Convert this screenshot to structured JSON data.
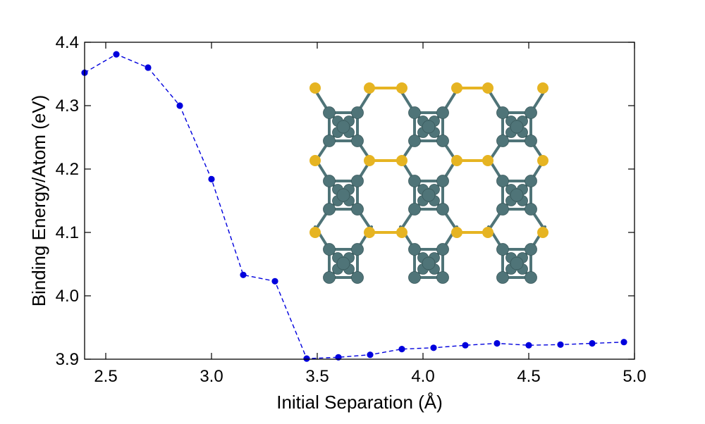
{
  "chart_data": {
    "type": "line",
    "title": "",
    "xlabel": "Initial Separation (Å)",
    "ylabel": "Binding Energy/Atom (eV)",
    "xlim": [
      2.4,
      5.0
    ],
    "ylim": [
      3.9,
      4.4
    ],
    "grid": false,
    "legend": "none",
    "line_style": "dashed",
    "marker": "circle",
    "colors": {
      "series": "#0000dd",
      "inset_sulfur": "#e6b422",
      "inset_metal": "#4f7478"
    },
    "x_ticks": [
      2.5,
      3.0,
      3.5,
      4.0,
      4.5,
      5.0
    ],
    "x_tick_labels": [
      "2.5",
      "3.0",
      "3.5",
      "4.0",
      "4.5",
      "5.0"
    ],
    "y_ticks": [
      3.9,
      4.0,
      4.1,
      4.2,
      4.3,
      4.4
    ],
    "y_tick_labels": [
      "3.9",
      "4.0",
      "4.1",
      "4.2",
      "4.3",
      "4.4"
    ],
    "x": [
      2.4,
      2.55,
      2.7,
      2.85,
      3.0,
      3.15,
      3.3,
      3.45,
      3.6,
      3.75,
      3.9,
      4.05,
      4.2,
      4.35,
      4.5,
      4.65,
      4.8,
      4.95
    ],
    "y": [
      4.352,
      4.381,
      4.36,
      4.3,
      4.184,
      4.033,
      4.023,
      3.901,
      3.903,
      3.907,
      3.916,
      3.918,
      3.922,
      3.925,
      3.922,
      3.923,
      3.925,
      3.927
    ],
    "inset": "atomic-structure-top-view"
  }
}
